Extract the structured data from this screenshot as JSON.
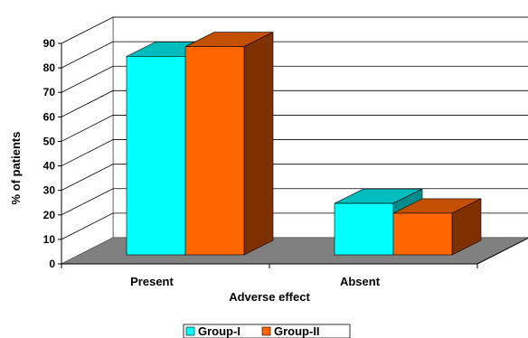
{
  "chart_data": {
    "type": "bar",
    "categories": [
      "Present",
      "Absent"
    ],
    "series": [
      {
        "name": "Group-I",
        "values": [
          81,
          21
        ],
        "color": "#00ffff",
        "top_color": "#00bcbc",
        "side_color": "#008c8c"
      },
      {
        "name": "Group-II",
        "values": [
          85,
          17
        ],
        "color": "#ff6600",
        "top_color": "#c25000",
        "side_color": "#7f3000"
      }
    ],
    "xlabel": "Adverse effect",
    "ylabel": "% of patients",
    "ylim": [
      0,
      90
    ],
    "yticks": [
      0,
      10,
      20,
      30,
      40,
      50,
      60,
      70,
      80,
      90
    ],
    "grid": true,
    "legend_position": "bottom",
    "floor_color": "#808080",
    "wall_color": "#ffffff"
  }
}
